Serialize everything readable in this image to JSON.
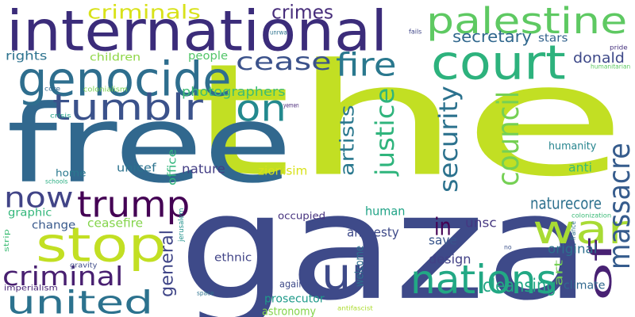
{
  "words": [
    {
      "id": "the",
      "text": "the",
      "color": "#c2df23",
      "vertical": false
    },
    {
      "id": "gaza",
      "text": "gaza",
      "color": "#3e4a89",
      "vertical": false
    },
    {
      "id": "free",
      "text": "free",
      "color": "#31688e",
      "vertical": false
    },
    {
      "id": "international",
      "text": "international",
      "color": "#3b2c7a",
      "vertical": false
    },
    {
      "id": "palestine",
      "text": "palestine",
      "color": "#5ec962",
      "vertical": false
    },
    {
      "id": "court",
      "text": "court",
      "color": "#2db27d",
      "vertical": false
    },
    {
      "id": "genocide",
      "text": "genocide",
      "color": "#2e6e8e",
      "vertical": false
    },
    {
      "id": "tumblr",
      "text": "tumblr",
      "color": "#3b528b",
      "vertical": false
    },
    {
      "id": "stop",
      "text": "stop",
      "color": "#c2df23",
      "vertical": false
    },
    {
      "id": "un",
      "text": "un",
      "color": "#3e4a89",
      "vertical": false
    },
    {
      "id": "united",
      "text": "united",
      "color": "#2c728e",
      "vertical": false
    },
    {
      "id": "nations",
      "text": "nations",
      "color": "#22a884",
      "vertical": false
    },
    {
      "id": "trump",
      "text": "trump",
      "color": "#440154",
      "vertical": false
    },
    {
      "id": "now",
      "text": "now",
      "color": "#414487",
      "vertical": false
    },
    {
      "id": "war",
      "text": "war",
      "color": "#a8db34",
      "vertical": false
    },
    {
      "id": "of",
      "text": "of",
      "color": "#482173",
      "vertical": true
    },
    {
      "id": "massacre",
      "text": "massacre",
      "color": "#365c8d",
      "vertical": true
    },
    {
      "id": "council",
      "text": "council",
      "color": "#75d054",
      "vertical": true
    },
    {
      "id": "criminal",
      "text": "criminal",
      "color": "#481f70",
      "vertical": false
    },
    {
      "id": "on",
      "text": "on",
      "color": "#23898e",
      "vertical": false
    },
    {
      "id": "fire",
      "text": "fire",
      "color": "#2a788e",
      "vertical": false
    },
    {
      "id": "cease",
      "text": "cease",
      "color": "#3b528b",
      "vertical": false
    },
    {
      "id": "crimes",
      "text": "crimes",
      "color": "#472d7b",
      "vertical": false
    },
    {
      "id": "criminals",
      "text": "criminals",
      "color": "#d8e219",
      "vertical": false
    },
    {
      "id": "justice",
      "text": "justice",
      "color": "#2fb47c",
      "vertical": true
    },
    {
      "id": "security",
      "text": "security",
      "color": "#2c728e",
      "vertical": true
    },
    {
      "id": "artists",
      "text": "artists",
      "color": "#2a788e",
      "vertical": true
    },
    {
      "id": "in",
      "text": "in",
      "color": "#440154",
      "vertical": false
    },
    {
      "id": "secretary",
      "text": "secretary",
      "color": "#31688e",
      "vertical": false
    },
    {
      "id": "general",
      "text": "general",
      "color": "#404688",
      "vertical": true
    },
    {
      "id": "photographers",
      "text": "photographers",
      "color": "#3dbc74",
      "vertical": false
    },
    {
      "id": "rights",
      "text": "rights",
      "color": "#2c728e",
      "vertical": false
    },
    {
      "id": "children",
      "text": "children",
      "color": "#8ed645",
      "vertical": false
    },
    {
      "id": "people",
      "text": "people",
      "color": "#52c569",
      "vertical": false
    },
    {
      "id": "donald",
      "text": "donald",
      "color": "#3e4989",
      "vertical": false
    },
    {
      "id": "stars",
      "text": "stars",
      "color": "#33638d",
      "vertical": false
    },
    {
      "id": "naturecore",
      "text": "naturecore",
      "color": "#2d718e",
      "vertical": false
    },
    {
      "id": "human",
      "text": "human",
      "color": "#20a386",
      "vertical": false
    },
    {
      "id": "humanity",
      "text": "humanity",
      "color": "#25848e",
      "vertical": false
    },
    {
      "id": "nature",
      "text": "nature",
      "color": "#433e85",
      "vertical": false
    },
    {
      "id": "anti",
      "text": "anti",
      "color": "#3aba76",
      "vertical": false
    },
    {
      "id": "unsc",
      "text": "unsc",
      "color": "#453781",
      "vertical": false
    },
    {
      "id": "amnesty",
      "text": "amnesty",
      "color": "#3e4a89",
      "vertical": false
    },
    {
      "id": "save",
      "text": "save",
      "color": "#39558c",
      "vertical": false
    },
    {
      "id": "design",
      "text": "design",
      "color": "#424186",
      "vertical": false
    },
    {
      "id": "original",
      "text": "original",
      "color": "#2d708e",
      "vertical": false
    },
    {
      "id": "art",
      "text": "art",
      "color": "#75d054",
      "vertical": true
    },
    {
      "id": "cleansing",
      "text": "cleansing",
      "color": "#22a785",
      "vertical": false
    },
    {
      "id": "climate",
      "text": "climate",
      "color": "#31688e",
      "vertical": false
    },
    {
      "id": "prosecutor",
      "text": "prosecutor",
      "color": "#1f9a8a",
      "vertical": false
    },
    {
      "id": "astronomy",
      "text": "astronomy",
      "color": "#84d44b",
      "vertical": false
    },
    {
      "id": "ethnic",
      "text": "ethnic",
      "color": "#414487",
      "vertical": false
    },
    {
      "id": "ceasefire",
      "text": "ceasefire",
      "color": "#84d44b",
      "vertical": false
    },
    {
      "id": "graphic",
      "text": "graphic",
      "color": "#32b67a",
      "vertical": false
    },
    {
      "id": "change",
      "text": "change",
      "color": "#38598c",
      "vertical": false
    },
    {
      "id": "unicef",
      "text": "unicef",
      "color": "#2c728e",
      "vertical": false
    },
    {
      "id": "home",
      "text": "home",
      "color": "#2a788e",
      "vertical": false
    },
    {
      "id": "office",
      "text": "office",
      "color": "#31b57b",
      "vertical": true
    },
    {
      "id": "zionisim",
      "text": "zionisim",
      "color": "#d8e219",
      "vertical": false
    },
    {
      "id": "occupied",
      "text": "occupied",
      "color": "#46327e",
      "vertical": false
    },
    {
      "id": "welcome",
      "text": "welcome",
      "color": "#2e6f8e",
      "vertical": true
    },
    {
      "id": "against",
      "text": "against",
      "color": "#3e4a89",
      "vertical": false
    },
    {
      "id": "imperialism",
      "text": "imperialism",
      "color": "#482576",
      "vertical": false
    },
    {
      "id": "gravity",
      "text": "gravity",
      "color": "#3e4a89",
      "vertical": false
    },
    {
      "id": "colonialism",
      "text": "colonialism",
      "color": "#7ad151",
      "vertical": false
    },
    {
      "id": "core",
      "text": "core",
      "color": "#31688e",
      "vertical": false
    },
    {
      "id": "crisis",
      "text": "crisis",
      "color": "#1fa187",
      "vertical": false
    },
    {
      "id": "schools",
      "text": "schools",
      "color": "#27ad81",
      "vertical": false
    },
    {
      "id": "strip",
      "text": "strip",
      "color": "#3dbc74",
      "vertical": true
    },
    {
      "id": "unrwa",
      "text": "unrwa",
      "color": "#2c728e",
      "vertical": false
    },
    {
      "id": "yemen",
      "text": "yemen",
      "color": "#482878",
      "vertical": false
    },
    {
      "id": "jerusalem",
      "text": "jerusalem",
      "color": "#21918c",
      "vertical": true
    },
    {
      "id": "space",
      "text": "space",
      "color": "#2c728e",
      "vertical": false
    },
    {
      "id": "antifascist",
      "text": "antifascist",
      "color": "#addc30",
      "vertical": false
    },
    {
      "id": "no",
      "text": "no",
      "color": "#3b528b",
      "vertical": false
    },
    {
      "id": "fails",
      "text": "fails",
      "color": "#404688",
      "vertical": false
    },
    {
      "id": "pride",
      "text": "pride",
      "color": "#46327e",
      "vertical": false
    },
    {
      "id": "humanitarian",
      "text": "humanitarian",
      "color": "#5ec962",
      "vertical": false
    },
    {
      "id": "colonization",
      "text": "colonization",
      "color": "#3aba76",
      "vertical": false
    },
    {
      "id": "france",
      "text": "france",
      "color": "#2c728e",
      "vertical": true
    }
  ]
}
